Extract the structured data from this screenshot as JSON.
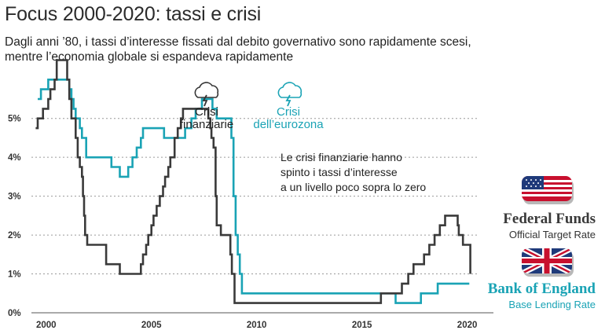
{
  "title": "Focus 2000-2020: tassi e crisi",
  "subtitle": "Dagli anni ’80, i tassi d’interesse fissati  dal debito governativo sono rapidamente scesi, mentre l’economia globale si espandeva rapidamente",
  "crisis_financial": {
    "line1": "Crisi",
    "line2": "finanziarie",
    "icon": "storm-cloud-icon"
  },
  "crisis_euro": {
    "line1": "Crisi",
    "line2": "dell’eurozona",
    "icon": "storm-cloud-icon"
  },
  "annotation": [
    "Le crisi finanziarie hanno",
    "spinto i tassi d’interesse",
    "a un livello poco sopra lo zero"
  ],
  "legend": {
    "fed": {
      "title": "Federal Funds",
      "sub": "Official Target Rate",
      "color": "#3a3a3a",
      "flag": "us-flag-icon"
    },
    "boe": {
      "title": "Bank of England",
      "sub": "Base Lending Rate",
      "color": "#1aa3b5",
      "flag": "uk-flag-icon"
    }
  },
  "chart_data": {
    "type": "line",
    "xlim": [
      1999.3,
      2020.5
    ],
    "ylim": [
      0,
      5.5
    ],
    "xticks": [
      2000,
      2005,
      2010,
      2015,
      2020
    ],
    "yticks": [
      {
        "v": 0,
        "label": "0%"
      },
      {
        "v": 1,
        "label": "1%"
      },
      {
        "v": 2,
        "label": "2%"
      },
      {
        "v": 3,
        "label": "3%"
      },
      {
        "v": 4,
        "label": "4%"
      },
      {
        "v": 5,
        "label": "5%"
      }
    ],
    "grid": "dotted-horizontal",
    "series": [
      {
        "key": "boe",
        "color": "#1aa3b5",
        "step": true,
        "points": [
          [
            1999.6,
            5.5
          ],
          [
            1999.75,
            5.75
          ],
          [
            2000.1,
            6.0
          ],
          [
            2000.8,
            6.0
          ],
          [
            2001.1,
            5.75
          ],
          [
            2001.2,
            5.5
          ],
          [
            2001.3,
            5.25
          ],
          [
            2001.4,
            5.0
          ],
          [
            2001.6,
            4.75
          ],
          [
            2001.7,
            4.5
          ],
          [
            2001.9,
            4.0
          ],
          [
            2003.1,
            3.75
          ],
          [
            2003.5,
            3.5
          ],
          [
            2003.9,
            3.75
          ],
          [
            2004.1,
            4.0
          ],
          [
            2004.3,
            4.25
          ],
          [
            2004.5,
            4.5
          ],
          [
            2004.6,
            4.75
          ],
          [
            2005.6,
            4.5
          ],
          [
            2006.6,
            4.75
          ],
          [
            2006.9,
            5.0
          ],
          [
            2007.1,
            5.25
          ],
          [
            2007.4,
            5.5
          ],
          [
            2007.9,
            5.25
          ],
          [
            2008.1,
            5.0
          ],
          [
            2008.3,
            5.0
          ],
          [
            2008.8,
            4.5
          ],
          [
            2008.9,
            3.0
          ],
          [
            2009.0,
            2.0
          ],
          [
            2009.1,
            1.5
          ],
          [
            2009.2,
            1.0
          ],
          [
            2009.3,
            0.5
          ],
          [
            2016.6,
            0.25
          ],
          [
            2017.8,
            0.5
          ],
          [
            2018.6,
            0.75
          ],
          [
            2020.1,
            0.75
          ]
        ]
      },
      {
        "key": "fed",
        "color": "#3a3a3a",
        "step": true,
        "points": [
          [
            1999.5,
            4.75
          ],
          [
            1999.6,
            5.0
          ],
          [
            1999.85,
            5.25
          ],
          [
            2000.1,
            5.5
          ],
          [
            2000.2,
            5.75
          ],
          [
            2000.4,
            6.0
          ],
          [
            2000.5,
            6.5
          ],
          [
            2001.0,
            6.0
          ],
          [
            2001.1,
            5.5
          ],
          [
            2001.2,
            5.0
          ],
          [
            2001.4,
            4.5
          ],
          [
            2001.5,
            4.0
          ],
          [
            2001.6,
            3.75
          ],
          [
            2001.7,
            3.5
          ],
          [
            2001.75,
            3.0
          ],
          [
            2001.8,
            2.5
          ],
          [
            2001.85,
            2.0
          ],
          [
            2001.95,
            1.75
          ],
          [
            2002.85,
            1.25
          ],
          [
            2003.5,
            1.0
          ],
          [
            2004.5,
            1.25
          ],
          [
            2004.6,
            1.5
          ],
          [
            2004.75,
            1.75
          ],
          [
            2004.85,
            2.0
          ],
          [
            2005.0,
            2.25
          ],
          [
            2005.1,
            2.5
          ],
          [
            2005.25,
            2.75
          ],
          [
            2005.4,
            3.0
          ],
          [
            2005.55,
            3.25
          ],
          [
            2005.65,
            3.5
          ],
          [
            2005.8,
            3.75
          ],
          [
            2005.9,
            4.0
          ],
          [
            2006.1,
            4.5
          ],
          [
            2006.25,
            4.75
          ],
          [
            2006.4,
            5.0
          ],
          [
            2006.5,
            5.25
          ],
          [
            2007.7,
            5.0
          ],
          [
            2007.8,
            4.75
          ],
          [
            2007.85,
            4.5
          ],
          [
            2007.95,
            4.25
          ],
          [
            2008.05,
            3.0
          ],
          [
            2008.1,
            2.25
          ],
          [
            2008.3,
            2.0
          ],
          [
            2008.75,
            1.5
          ],
          [
            2008.82,
            1.0
          ],
          [
            2008.95,
            0.25
          ],
          [
            2015.9,
            0.5
          ],
          [
            2016.9,
            0.75
          ],
          [
            2017.2,
            1.0
          ],
          [
            2017.45,
            1.25
          ],
          [
            2017.95,
            1.5
          ],
          [
            2018.2,
            1.75
          ],
          [
            2018.45,
            2.0
          ],
          [
            2018.7,
            2.25
          ],
          [
            2018.95,
            2.5
          ],
          [
            2019.55,
            2.25
          ],
          [
            2019.6,
            2.0
          ],
          [
            2019.8,
            1.75
          ],
          [
            2020.15,
            1.0
          ]
        ]
      }
    ]
  }
}
